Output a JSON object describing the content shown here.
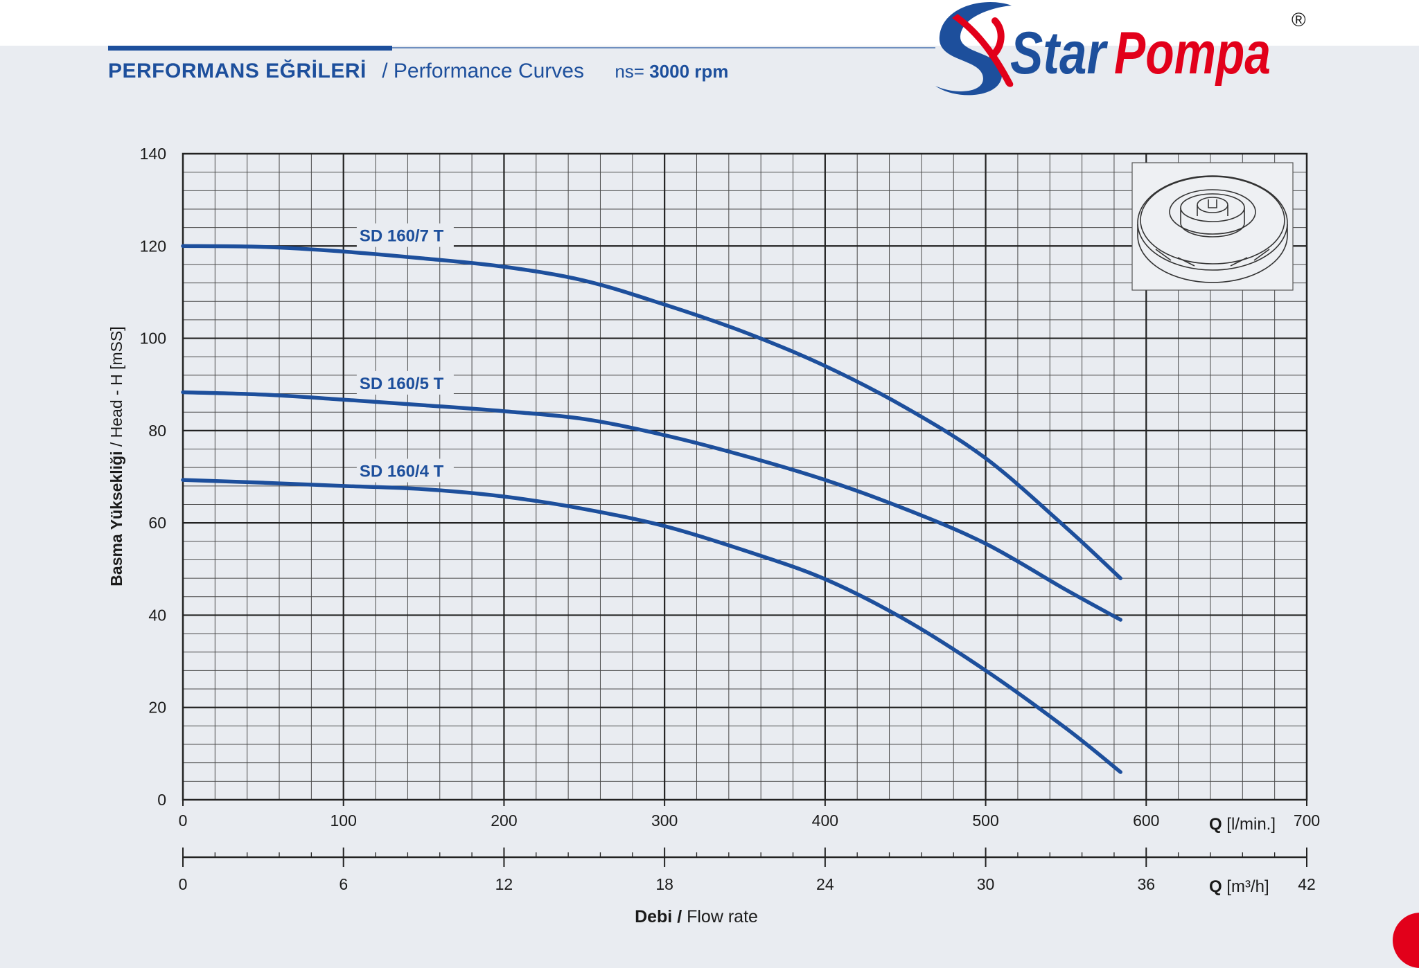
{
  "header": {
    "title_tr": "PERFORMANS EĞRİLERİ",
    "title_en": "/ Performance Curves",
    "speed_label": "ns=",
    "speed_value": "3000 rpm"
  },
  "logo": {
    "brand_part1": "Star",
    "brand_part2": "Pompa",
    "registered_mark": "®",
    "colors": {
      "blue": "#1d4f9c",
      "red": "#e2001a"
    }
  },
  "chart_data": {
    "type": "line",
    "xlabel": "Q [l/min.]",
    "xlabel_symbol": "Q",
    "xlabel_unit": "[l/min.]",
    "xlim": [
      0,
      700
    ],
    "x_ticks": [
      0,
      100,
      200,
      300,
      400,
      500,
      600,
      700
    ],
    "x2label_symbol": "Q",
    "x2label_unit": "[m³/h]",
    "x2_ticks": [
      0,
      6,
      12,
      18,
      24,
      30,
      36,
      42
    ],
    "ylabel": "Basma Yüksekliği / Head - H [mSS]",
    "ylabel_bold": "Basma Yüksekliği",
    "ylabel_rest": "/ Head - H [mSS]",
    "ylim": [
      0,
      140
    ],
    "y_ticks": [
      0,
      20,
      40,
      60,
      80,
      100,
      120,
      140
    ],
    "bottom_label_bold": "Debi /",
    "bottom_label_rest": "Flow rate",
    "grid": true,
    "line_color": "#1d4f9c",
    "series": [
      {
        "name": "SD 160/7 T",
        "label_at": [
          110,
          121
        ],
        "x": [
          0,
          50,
          100,
          150,
          200,
          250,
          300,
          350,
          400,
          450,
          500,
          550,
          584
        ],
        "y": [
          120,
          119.8,
          118.8,
          117.3,
          115.5,
          112.5,
          107.3,
          101.3,
          94,
          85,
          74,
          59,
          48
        ]
      },
      {
        "name": "SD 160/5 T",
        "label_at": [
          110,
          89
        ],
        "x": [
          0,
          50,
          100,
          150,
          200,
          250,
          300,
          350,
          400,
          450,
          500,
          550,
          584
        ],
        "y": [
          88.3,
          87.8,
          86.7,
          85.5,
          84.2,
          82.5,
          79,
          74.5,
          69.3,
          63,
          55.5,
          45.5,
          39
        ]
      },
      {
        "name": "SD 160/4 T",
        "label_at": [
          110,
          70
        ],
        "x": [
          0,
          50,
          100,
          150,
          200,
          250,
          300,
          350,
          400,
          450,
          500,
          550,
          584
        ],
        "y": [
          69.3,
          68.7,
          68,
          67.3,
          65.7,
          63,
          59.3,
          54,
          47.8,
          39,
          28,
          15.5,
          6
        ]
      }
    ]
  }
}
